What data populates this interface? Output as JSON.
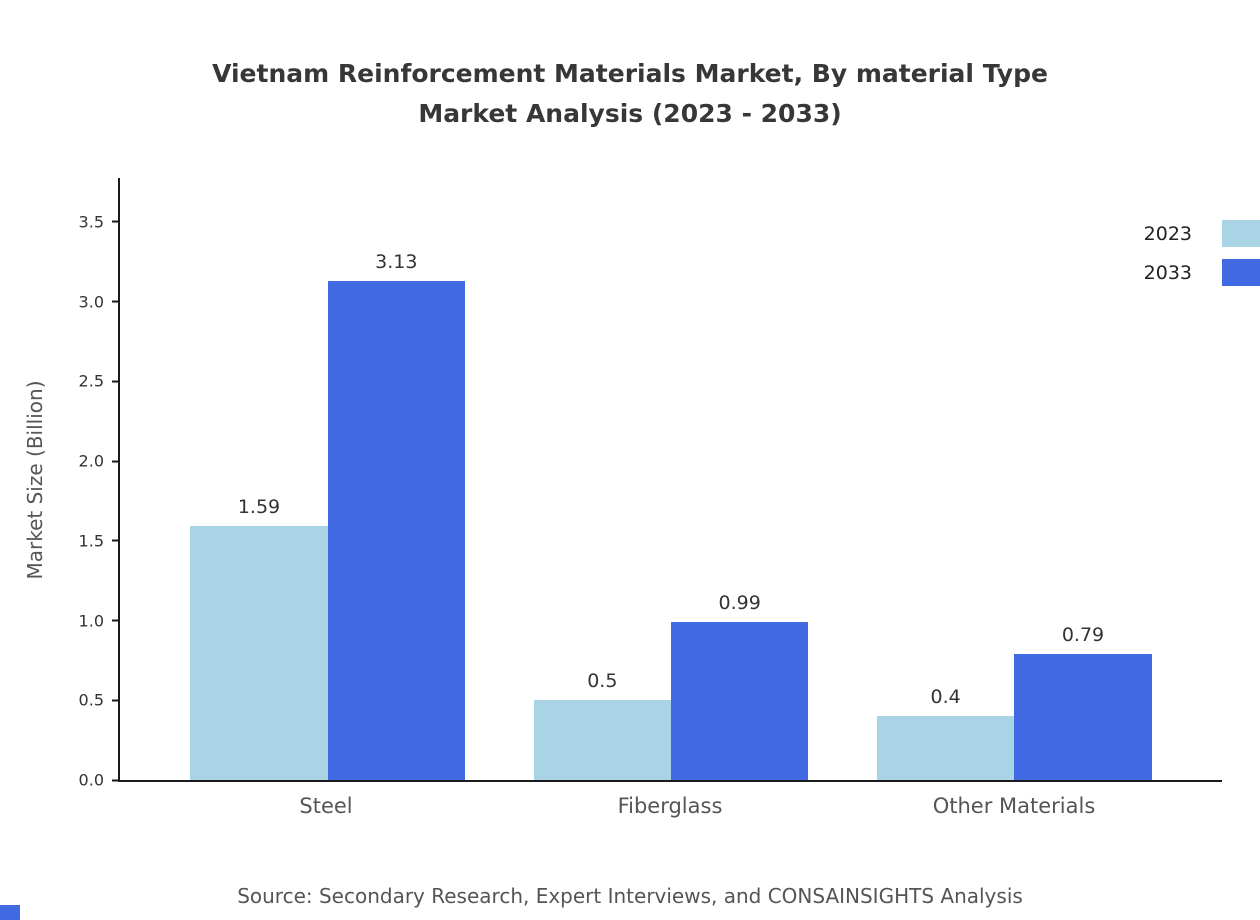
{
  "title": {
    "line1": "Vietnam Reinforcement Materials Market, By material Type",
    "line2": "Market Analysis (2023 - 2033)"
  },
  "source": "Source: Secondary Research, Expert Interviews, and CONSAINSIGHTS Analysis",
  "chart_data": {
    "type": "bar",
    "title": "Vietnam Reinforcement Materials Market, By material Type Market Analysis (2023 - 2033)",
    "categories": [
      "Steel",
      "Fiberglass",
      "Other Materials"
    ],
    "series": [
      {
        "name": "2023",
        "color": "#a9d4e5",
        "values": [
          1.59,
          0.5,
          0.4
        ]
      },
      {
        "name": "2033",
        "color": "#4169e1",
        "values": [
          3.13,
          0.99,
          0.79
        ]
      }
    ],
    "xlabel": "",
    "ylabel": "Market Size (Billion)",
    "ylim": [
      0,
      3.775
    ],
    "yticks": [
      "0.0",
      "0.5",
      "1.0",
      "1.5",
      "2.0",
      "2.5",
      "3.0",
      "3.5"
    ],
    "grid": false,
    "legend_position": "top-right"
  }
}
